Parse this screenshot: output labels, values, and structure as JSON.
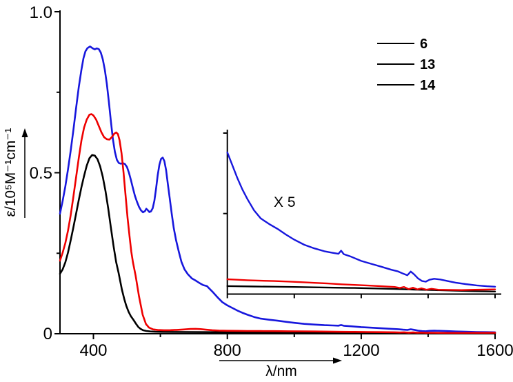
{
  "chart_data": {
    "type": "line",
    "title": "",
    "xlabel": "λ/nm",
    "ylabel": "ε/10⁵M⁻¹cm⁻¹",
    "x_axis": {
      "min": 300,
      "max": 1600,
      "major_ticks": [
        400,
        800,
        1200,
        1600
      ],
      "minor_ticks": [
        600,
        1000,
        1400
      ],
      "tick_labels": [
        "400",
        "800",
        "1200",
        "1600"
      ]
    },
    "y_axis": {
      "min": 0,
      "max": 1.0,
      "major_ticks": [
        1.0,
        0.5,
        0
      ],
      "minor_ticks": [
        0.25,
        0.75
      ],
      "tick_labels": [
        "1.0",
        "0.5",
        "0"
      ]
    },
    "legend": {
      "position": "top-right",
      "entries": [
        {
          "label": "6",
          "color": "#000000"
        },
        {
          "label": "13",
          "color": "#ee0000"
        },
        {
          "label": "14",
          "color": "#1717dd"
        }
      ]
    },
    "inset": {
      "label": "X 5",
      "multiplier": 5,
      "x_range_nm": [
        800,
        1600
      ],
      "x_ticks": [
        1000,
        1200,
        1400,
        1600
      ]
    },
    "series": [
      {
        "name": "6",
        "color": "#000000",
        "points": [
          [
            300,
            0.186
          ],
          [
            308,
            0.2
          ],
          [
            316,
            0.222
          ],
          [
            324,
            0.252
          ],
          [
            332,
            0.29
          ],
          [
            340,
            0.33
          ],
          [
            348,
            0.372
          ],
          [
            356,
            0.415
          ],
          [
            364,
            0.455
          ],
          [
            372,
            0.49
          ],
          [
            380,
            0.522
          ],
          [
            388,
            0.545
          ],
          [
            396,
            0.555
          ],
          [
            404,
            0.553
          ],
          [
            412,
            0.542
          ],
          [
            420,
            0.52
          ],
          [
            428,
            0.487
          ],
          [
            436,
            0.443
          ],
          [
            444,
            0.39
          ],
          [
            452,
            0.33
          ],
          [
            460,
            0.272
          ],
          [
            468,
            0.222
          ],
          [
            475,
            0.19
          ],
          [
            485,
            0.137
          ],
          [
            492,
            0.108
          ],
          [
            498,
            0.087
          ],
          [
            505,
            0.068
          ],
          [
            512,
            0.054
          ],
          [
            519,
            0.044
          ],
          [
            527,
            0.031
          ],
          [
            534,
            0.021
          ],
          [
            540,
            0.0156
          ],
          [
            548,
            0.011
          ],
          [
            558,
            0.0085
          ],
          [
            570,
            0.007
          ],
          [
            585,
            0.0063
          ],
          [
            605,
            0.0058
          ],
          [
            640,
            0.0055
          ],
          [
            700,
            0.0052
          ],
          [
            760,
            0.005
          ],
          [
            800,
            0.00495
          ],
          [
            820,
            0.0049
          ],
          [
            880,
            0.0047
          ],
          [
            940,
            0.0046
          ],
          [
            1000,
            0.0044
          ],
          [
            1060,
            0.0042
          ],
          [
            1120,
            0.004
          ],
          [
            1180,
            0.0038
          ],
          [
            1240,
            0.0035
          ],
          [
            1300,
            0.0032
          ],
          [
            1360,
            0.0028
          ],
          [
            1420,
            0.0025
          ],
          [
            1480,
            0.0021
          ],
          [
            1540,
            0.0018
          ],
          [
            1600,
            0.0016
          ]
        ]
      },
      {
        "name": "13",
        "color": "#ee0000",
        "points": [
          [
            300,
            0.227
          ],
          [
            308,
            0.252
          ],
          [
            316,
            0.282
          ],
          [
            324,
            0.32
          ],
          [
            332,
            0.368
          ],
          [
            340,
            0.425
          ],
          [
            348,
            0.485
          ],
          [
            356,
            0.545
          ],
          [
            364,
            0.6
          ],
          [
            372,
            0.64
          ],
          [
            380,
            0.665
          ],
          [
            388,
            0.68
          ],
          [
            394,
            0.682
          ],
          [
            400,
            0.678
          ],
          [
            408,
            0.665
          ],
          [
            416,
            0.645
          ],
          [
            424,
            0.625
          ],
          [
            432,
            0.61
          ],
          [
            440,
            0.604
          ],
          [
            448,
            0.603
          ],
          [
            456,
            0.612
          ],
          [
            462,
            0.621
          ],
          [
            468,
            0.625
          ],
          [
            473,
            0.62
          ],
          [
            478,
            0.601
          ],
          [
            484,
            0.56
          ],
          [
            490,
            0.5
          ],
          [
            496,
            0.43
          ],
          [
            502,
            0.36
          ],
          [
            508,
            0.3
          ],
          [
            513,
            0.255
          ],
          [
            518,
            0.222
          ],
          [
            526,
            0.18
          ],
          [
            536,
            0.116
          ],
          [
            547,
            0.059
          ],
          [
            557,
            0.03
          ],
          [
            566,
            0.019
          ],
          [
            578,
            0.0135
          ],
          [
            592,
            0.0115
          ],
          [
            610,
            0.011
          ],
          [
            630,
            0.0112
          ],
          [
            650,
            0.012
          ],
          [
            670,
            0.0132
          ],
          [
            690,
            0.0147
          ],
          [
            705,
            0.0152
          ],
          [
            720,
            0.0144
          ],
          [
            738,
            0.0125
          ],
          [
            755,
            0.011
          ],
          [
            775,
            0.0099
          ],
          [
            800,
            0.0092
          ],
          [
            830,
            0.0089
          ],
          [
            860,
            0.0086
          ],
          [
            900,
            0.0083
          ],
          [
            940,
            0.0081
          ],
          [
            980,
            0.0078
          ],
          [
            1020,
            0.0074
          ],
          [
            1060,
            0.007
          ],
          [
            1100,
            0.0066
          ],
          [
            1140,
            0.0061
          ],
          [
            1180,
            0.0057
          ],
          [
            1220,
            0.0053
          ],
          [
            1260,
            0.0049
          ],
          [
            1300,
            0.0044
          ],
          [
            1315,
            0.0038
          ],
          [
            1328,
            0.0044
          ],
          [
            1342,
            0.0031
          ],
          [
            1355,
            0.004
          ],
          [
            1368,
            0.0029
          ],
          [
            1380,
            0.0036
          ],
          [
            1395,
            0.0027
          ],
          [
            1410,
            0.0033
          ],
          [
            1430,
            0.0027
          ],
          [
            1460,
            0.0026
          ],
          [
            1500,
            0.0025
          ],
          [
            1540,
            0.0027
          ],
          [
            1570,
            0.0028
          ],
          [
            1600,
            0.0029
          ]
        ]
      },
      {
        "name": "14",
        "color": "#1717dd",
        "points": [
          [
            300,
            0.373
          ],
          [
            308,
            0.413
          ],
          [
            316,
            0.458
          ],
          [
            324,
            0.51
          ],
          [
            332,
            0.568
          ],
          [
            340,
            0.632
          ],
          [
            348,
            0.7
          ],
          [
            356,
            0.765
          ],
          [
            364,
            0.82
          ],
          [
            370,
            0.855
          ],
          [
            376,
            0.877
          ],
          [
            382,
            0.887
          ],
          [
            390,
            0.892
          ],
          [
            398,
            0.886
          ],
          [
            404,
            0.883
          ],
          [
            410,
            0.886
          ],
          [
            416,
            0.884
          ],
          [
            422,
            0.873
          ],
          [
            428,
            0.852
          ],
          [
            434,
            0.82
          ],
          [
            440,
            0.775
          ],
          [
            446,
            0.72
          ],
          [
            452,
            0.66
          ],
          [
            458,
            0.605
          ],
          [
            464,
            0.565
          ],
          [
            470,
            0.54
          ],
          [
            476,
            0.53
          ],
          [
            482,
            0.528
          ],
          [
            488,
            0.53
          ],
          [
            494,
            0.527
          ],
          [
            500,
            0.518
          ],
          [
            506,
            0.5
          ],
          [
            512,
            0.477
          ],
          [
            518,
            0.452
          ],
          [
            524,
            0.428
          ],
          [
            530,
            0.41
          ],
          [
            536,
            0.394
          ],
          [
            542,
            0.383
          ],
          [
            548,
            0.377
          ],
          [
            554,
            0.381
          ],
          [
            558,
            0.388
          ],
          [
            562,
            0.384
          ],
          [
            567,
            0.378
          ],
          [
            572,
            0.38
          ],
          [
            577,
            0.39
          ],
          [
            582,
            0.413
          ],
          [
            587,
            0.45
          ],
          [
            592,
            0.492
          ],
          [
            597,
            0.525
          ],
          [
            602,
            0.543
          ],
          [
            607,
            0.547
          ],
          [
            612,
            0.536
          ],
          [
            617,
            0.508
          ],
          [
            622,
            0.467
          ],
          [
            628,
            0.42
          ],
          [
            634,
            0.372
          ],
          [
            640,
            0.328
          ],
          [
            647,
            0.29
          ],
          [
            655,
            0.255
          ],
          [
            663,
            0.223
          ],
          [
            672,
            0.2
          ],
          [
            682,
            0.185
          ],
          [
            694,
            0.172
          ],
          [
            704,
            0.166
          ],
          [
            716,
            0.158
          ],
          [
            728,
            0.151
          ],
          [
            739,
            0.148
          ],
          [
            755,
            0.131
          ],
          [
            770,
            0.114
          ],
          [
            785,
            0.098
          ],
          [
            800,
            0.088
          ],
          [
            815,
            0.08
          ],
          [
            830,
            0.072
          ],
          [
            845,
            0.065
          ],
          [
            860,
            0.059
          ],
          [
            880,
            0.052
          ],
          [
            900,
            0.047
          ],
          [
            925,
            0.0435
          ],
          [
            950,
            0.0405
          ],
          [
            975,
            0.037
          ],
          [
            1000,
            0.0338
          ],
          [
            1030,
            0.0306
          ],
          [
            1060,
            0.0284
          ],
          [
            1090,
            0.0266
          ],
          [
            1115,
            0.0256
          ],
          [
            1132,
            0.025
          ],
          [
            1140,
            0.027
          ],
          [
            1148,
            0.0248
          ],
          [
            1170,
            0.0232
          ],
          [
            1200,
            0.0206
          ],
          [
            1230,
            0.0188
          ],
          [
            1260,
            0.017
          ],
          [
            1290,
            0.0151
          ],
          [
            1310,
            0.0141
          ],
          [
            1325,
            0.0127
          ],
          [
            1338,
            0.0117
          ],
          [
            1348,
            0.014
          ],
          [
            1358,
            0.0123
          ],
          [
            1370,
            0.0097
          ],
          [
            1382,
            0.0081
          ],
          [
            1393,
            0.0077
          ],
          [
            1404,
            0.0089
          ],
          [
            1418,
            0.0095
          ],
          [
            1436,
            0.0091
          ],
          [
            1458,
            0.0081
          ],
          [
            1482,
            0.0071
          ],
          [
            1512,
            0.0062
          ],
          [
            1545,
            0.0054
          ],
          [
            1575,
            0.0049
          ],
          [
            1600,
            0.0046
          ]
        ]
      }
    ]
  }
}
